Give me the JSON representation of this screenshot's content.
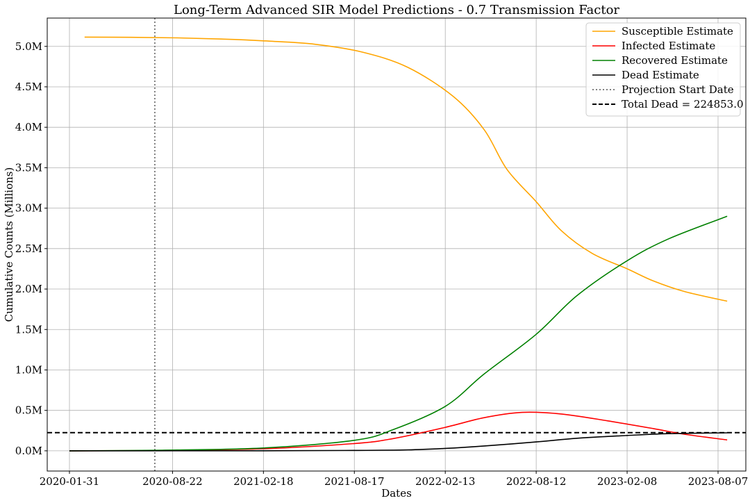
{
  "chart_data": {
    "type": "line",
    "title": "Long-Term Advanced SIR Model Predictions - 0.7 Transmission Factor",
    "xlabel": "Dates",
    "ylabel": "Cumulative Counts (Millions)",
    "x_range": [
      "2019-12-18",
      "2023-10-01"
    ],
    "ylim": [
      -0.25,
      5.35
    ],
    "x_ticks": [
      "2020-01-31",
      "2020-08-22",
      "2021-02-18",
      "2021-08-17",
      "2022-02-13",
      "2022-08-12",
      "2023-02-08",
      "2023-08-07"
    ],
    "y_ticks": [
      {
        "value": 0.0,
        "label": "0.0M"
      },
      {
        "value": 0.5,
        "label": "0.5M"
      },
      {
        "value": 1.0,
        "label": "1.0M"
      },
      {
        "value": 1.5,
        "label": "1.5M"
      },
      {
        "value": 2.0,
        "label": "2.0M"
      },
      {
        "value": 2.5,
        "label": "2.5M"
      },
      {
        "value": 3.0,
        "label": "3.0M"
      },
      {
        "value": 3.5,
        "label": "3.5M"
      },
      {
        "value": 4.0,
        "label": "4.0M"
      },
      {
        "value": 4.5,
        "label": "4.5M"
      },
      {
        "value": 5.0,
        "label": "5.0M"
      }
    ],
    "grid": true,
    "legend_position": "top-right",
    "projection_start": "2020-07-18",
    "total_dead": 0.224853,
    "series": [
      {
        "name": "Susceptible Estimate",
        "color": "#ffa500",
        "style": "solid",
        "points": [
          [
            "2020-03-01",
            5.115
          ],
          [
            "2020-06-01",
            5.112
          ],
          [
            "2020-09-01",
            5.105
          ],
          [
            "2020-12-01",
            5.09
          ],
          [
            "2021-03-01",
            5.065
          ],
          [
            "2021-06-01",
            5.025
          ],
          [
            "2021-09-01",
            4.93
          ],
          [
            "2021-12-01",
            4.74
          ],
          [
            "2022-03-01",
            4.38
          ],
          [
            "2022-05-01",
            3.97
          ],
          [
            "2022-06-15",
            3.48
          ],
          [
            "2022-08-12",
            3.08
          ],
          [
            "2022-10-01",
            2.72
          ],
          [
            "2022-12-01",
            2.44
          ],
          [
            "2023-02-08",
            2.25
          ],
          [
            "2023-04-01",
            2.1
          ],
          [
            "2023-06-01",
            1.97
          ],
          [
            "2023-08-25",
            1.85
          ]
        ]
      },
      {
        "name": "Infected Estimate",
        "color": "#ff0000",
        "style": "solid",
        "points": [
          [
            "2020-01-31",
            0.0
          ],
          [
            "2020-08-01",
            0.005
          ],
          [
            "2021-02-18",
            0.025
          ],
          [
            "2021-08-17",
            0.09
          ],
          [
            "2021-11-01",
            0.15
          ],
          [
            "2022-02-13",
            0.29
          ],
          [
            "2022-05-01",
            0.41
          ],
          [
            "2022-07-15",
            0.475
          ],
          [
            "2022-10-01",
            0.455
          ],
          [
            "2023-01-01",
            0.37
          ],
          [
            "2023-04-01",
            0.275
          ],
          [
            "2023-06-01",
            0.205
          ],
          [
            "2023-08-25",
            0.135
          ]
        ]
      },
      {
        "name": "Recovered Estimate",
        "color": "#008000",
        "style": "solid",
        "points": [
          [
            "2020-01-31",
            0.0
          ],
          [
            "2020-08-01",
            0.008
          ],
          [
            "2021-02-18",
            0.035
          ],
          [
            "2021-08-17",
            0.13
          ],
          [
            "2021-11-01",
            0.26
          ],
          [
            "2022-02-13",
            0.55
          ],
          [
            "2022-05-01",
            0.95
          ],
          [
            "2022-08-12",
            1.44
          ],
          [
            "2022-11-01",
            1.92
          ],
          [
            "2023-02-08",
            2.35
          ],
          [
            "2023-05-01",
            2.62
          ],
          [
            "2023-08-25",
            2.9
          ]
        ]
      },
      {
        "name": "Dead Estimate",
        "color": "#000000",
        "style": "solid",
        "points": [
          [
            "2020-01-31",
            0.0
          ],
          [
            "2021-02-18",
            0.001
          ],
          [
            "2021-08-17",
            0.005
          ],
          [
            "2021-12-01",
            0.012
          ],
          [
            "2022-02-13",
            0.03
          ],
          [
            "2022-05-01",
            0.06
          ],
          [
            "2022-08-12",
            0.11
          ],
          [
            "2022-11-01",
            0.155
          ],
          [
            "2023-02-08",
            0.19
          ],
          [
            "2023-05-01",
            0.212
          ],
          [
            "2023-08-25",
            0.222
          ]
        ]
      }
    ],
    "legend": [
      {
        "label": "Susceptible Estimate",
        "color": "#ffa500",
        "style": "solid"
      },
      {
        "label": "Infected Estimate",
        "color": "#ff0000",
        "style": "solid"
      },
      {
        "label": "Recovered Estimate",
        "color": "#008000",
        "style": "solid"
      },
      {
        "label": "Dead Estimate",
        "color": "#000000",
        "style": "solid"
      },
      {
        "label": "Projection Start Date",
        "color": "#808080",
        "style": "dotted"
      },
      {
        "label": "Total Dead = 224853.0",
        "color": "#000000",
        "style": "dashed"
      }
    ]
  }
}
